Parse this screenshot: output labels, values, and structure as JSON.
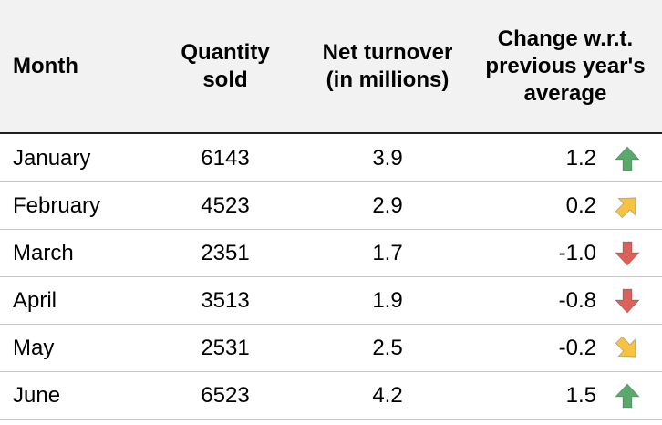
{
  "columns": {
    "month": "Month",
    "qty_line1": "Quantity",
    "qty_line2": "sold",
    "net_line1": "Net turnover",
    "net_line2": "(in millions)",
    "chg_line1": "Change w.r.t.",
    "chg_line2": "previous year's",
    "chg_line3": "average"
  },
  "rows": [
    {
      "month": "January",
      "qty": "6143",
      "net": "3.9",
      "change": "1.2",
      "icon": "arrow-up-icon",
      "color": "#5aa86b"
    },
    {
      "month": "February",
      "qty": "4523",
      "net": "2.9",
      "change": "0.2",
      "icon": "arrow-up-right-icon",
      "color": "#f5c242"
    },
    {
      "month": "March",
      "qty": "2351",
      "net": "1.7",
      "change": "-1.0",
      "icon": "arrow-down-icon",
      "color": "#d9625a"
    },
    {
      "month": "April",
      "qty": "3513",
      "net": "1.9",
      "change": "-0.8",
      "icon": "arrow-down-icon",
      "color": "#d9625a"
    },
    {
      "month": "May",
      "qty": "2531",
      "net": "2.5",
      "change": "-0.2",
      "icon": "arrow-down-right-icon",
      "color": "#f5c242"
    },
    {
      "month": "June",
      "qty": "6523",
      "net": "4.2",
      "change": "1.5",
      "icon": "arrow-up-icon",
      "color": "#5aa86b"
    }
  ]
}
